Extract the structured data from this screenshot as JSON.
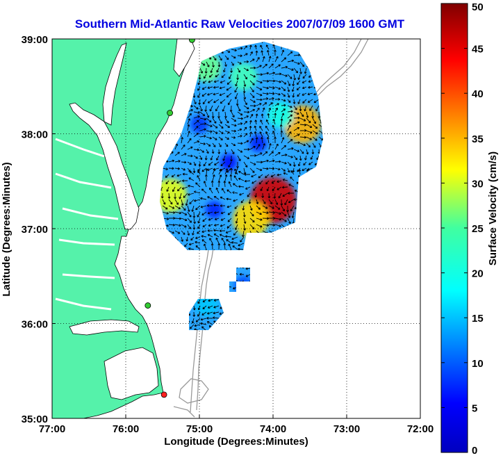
{
  "chart_data": {
    "type": "heatmap",
    "title": "Southern Mid-Atlantic Raw Velocities 2007/07/09 1600 GMT",
    "xlabel": "Longitude (Degrees:Minutes)",
    "ylabel": "Latitude (Degrees:Minutes)",
    "colorbar_label": "Surface Velocity (cm/s)",
    "x_ticks": [
      {
        "value": -77,
        "label": "77:00"
      },
      {
        "value": -76,
        "label": "76:00"
      },
      {
        "value": -75,
        "label": "75:00"
      },
      {
        "value": -74,
        "label": "74:00"
      },
      {
        "value": -73,
        "label": "73:00"
      },
      {
        "value": -72,
        "label": "72:00"
      }
    ],
    "y_ticks": [
      {
        "value": 35,
        "label": "35:00"
      },
      {
        "value": 36,
        "label": "36:00"
      },
      {
        "value": 37,
        "label": "37:00"
      },
      {
        "value": 38,
        "label": "38:00"
      },
      {
        "value": 39,
        "label": "39:00"
      }
    ],
    "xlim": [
      -77,
      -72
    ],
    "ylim": [
      35,
      39
    ],
    "colorbar_ticks": [
      0,
      5,
      10,
      15,
      20,
      25,
      30,
      35,
      40,
      45,
      50
    ],
    "colorbar_range": [
      0,
      50
    ],
    "colormap": "jet",
    "grid": "dotted",
    "colors": {
      "title": "#0000e0",
      "land": "#55f2aa",
      "isobath": "#999999"
    },
    "stations": [
      {
        "lon": -75.1,
        "lat": 38.99,
        "color": "#33cc33"
      },
      {
        "lon": -75.4,
        "lat": 38.22,
        "color": "#33cc33"
      },
      {
        "lon": -75.7,
        "lat": 36.19,
        "color": "#33cc33"
      },
      {
        "lon": -75.48,
        "lat": 35.25,
        "color": "#ff2020"
      }
    ],
    "velocity_hotspots": [
      {
        "lon": -74.0,
        "lat": 37.3,
        "speed": 46
      },
      {
        "lon": -73.6,
        "lat": 38.1,
        "speed": 35
      },
      {
        "lon": -74.3,
        "lat": 37.1,
        "speed": 33
      },
      {
        "lon": -75.4,
        "lat": 37.35,
        "speed": 30
      },
      {
        "lon": -74.9,
        "lat": 38.7,
        "speed": 24
      },
      {
        "lon": -74.4,
        "lat": 38.6,
        "speed": 22
      },
      {
        "lon": -73.9,
        "lat": 38.2,
        "speed": 20
      },
      {
        "lon": -75.0,
        "lat": 38.1,
        "speed": 9
      },
      {
        "lon": -74.6,
        "lat": 37.7,
        "speed": 7
      },
      {
        "lon": -74.2,
        "lat": 37.9,
        "speed": 8
      },
      {
        "lon": -74.8,
        "lat": 37.2,
        "speed": 8
      },
      {
        "lon": -74.9,
        "lat": 36.2,
        "speed": 16
      },
      {
        "lon": -74.4,
        "lat": 36.4,
        "speed": 10
      }
    ]
  }
}
